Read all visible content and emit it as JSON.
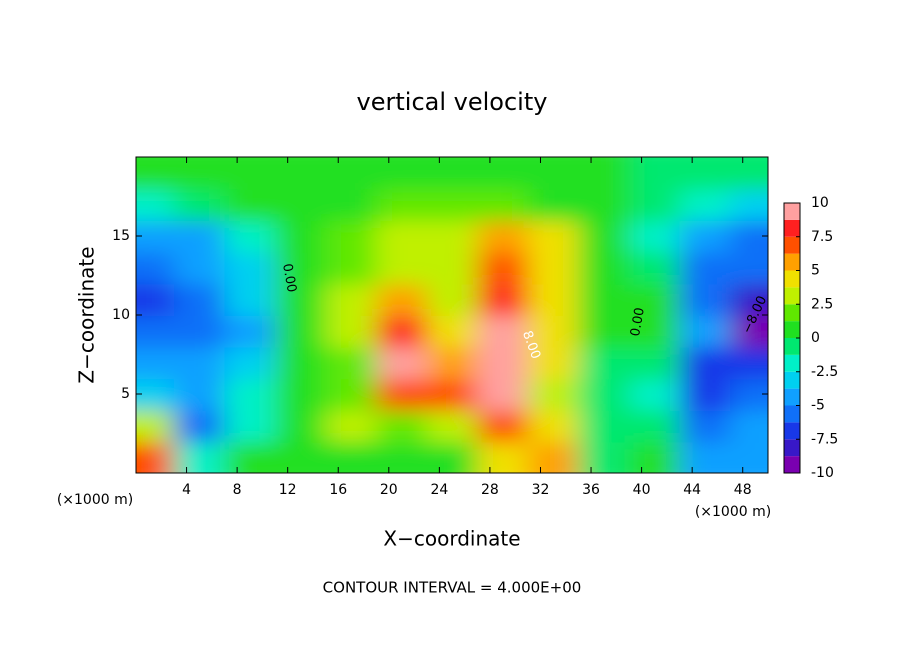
{
  "chart_data": {
    "type": "heatmap",
    "title": "vertical velocity",
    "x_label": "X−coordinate",
    "y_label": "Z−coordinate",
    "x_unit_left": "(×1000 m)",
    "x_unit_right": "(×1000 m)",
    "footer": "CONTOUR INTERVAL = 4.000E+00",
    "contour_labels": [
      "0.00",
      "0.00",
      "8.00",
      "−8.00"
    ],
    "x": [
      1,
      5,
      9,
      13,
      17,
      21,
      25,
      29,
      33,
      37,
      41,
      45,
      49
    ],
    "y": [
      1,
      3,
      5,
      7,
      9,
      11,
      13,
      15,
      17,
      19
    ],
    "values": [
      [
        7,
        -2,
        0,
        0,
        1,
        1,
        1,
        4,
        5,
        -1,
        0,
        -5,
        -4
      ],
      [
        3,
        -6,
        -2,
        0,
        3,
        2,
        3,
        7,
        4,
        -1,
        -1,
        -6,
        -5
      ],
      [
        -3,
        -4,
        -2,
        0,
        2,
        7,
        7,
        9,
        3,
        -1,
        -2,
        -7,
        -6
      ],
      [
        -5,
        -5,
        -3,
        0,
        2,
        9,
        5,
        10,
        4,
        -1,
        -1,
        -7,
        -7
      ],
      [
        -6,
        -6,
        -4,
        0,
        3,
        8,
        4,
        10,
        4,
        0,
        0,
        -5,
        -9
      ],
      [
        -7,
        -6,
        -3,
        0,
        3,
        5,
        3,
        8,
        4,
        0,
        0,
        -6,
        -8
      ],
      [
        -6,
        -5,
        -3,
        0.5,
        2,
        3,
        3,
        6.5,
        4,
        1,
        -1,
        -6,
        -6
      ],
      [
        -5,
        -4,
        -2,
        0.5,
        1.5,
        2.5,
        2.5,
        5,
        4,
        0.5,
        -2,
        -5,
        -6
      ],
      [
        -2.5,
        -1,
        0,
        0.5,
        1,
        1.5,
        2,
        1.5,
        1,
        0,
        -1,
        -2,
        -3
      ],
      [
        1,
        0.5,
        0,
        0.5,
        1,
        1,
        1,
        1,
        0.5,
        0,
        -0.5,
        -1,
        -1
      ]
    ],
    "xlim": [
      0,
      50
    ],
    "ylim": [
      0,
      20
    ],
    "xticks": [
      4,
      8,
      12,
      16,
      20,
      24,
      28,
      32,
      36,
      40,
      44,
      48
    ],
    "yticks": [
      5,
      10,
      15
    ],
    "zlim": [
      -10,
      10
    ],
    "colorbar_ticks": [
      10,
      7.5,
      5,
      2.5,
      0,
      -2.5,
      -5,
      -7.5,
      -10
    ],
    "colors": [
      "#7a00b0",
      "#3818c8",
      "#1838e8",
      "#1070f8",
      "#10a0ff",
      "#00d0f0",
      "#00f0c8",
      "#00e870",
      "#20e020",
      "#60e800",
      "#c0f000",
      "#f0e000",
      "#ffa000",
      "#ff5000",
      "#ff2020",
      "#ffa0a0"
    ]
  }
}
